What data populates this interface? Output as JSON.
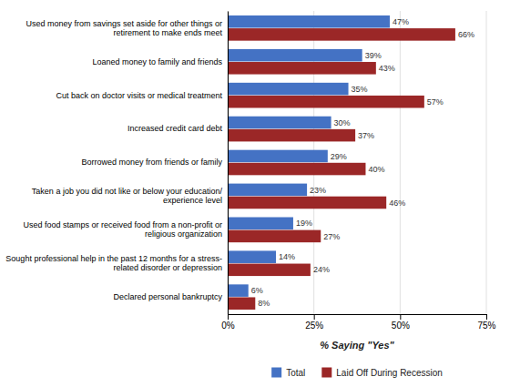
{
  "chart_data": {
    "type": "bar",
    "orientation": "horizontal",
    "categories": [
      "Used money from savings set aside for other things or\nretirement to make ends meet",
      "Loaned money to family and friends",
      "Cut back on doctor visits or medical treatment",
      "Increased credit card debt",
      "Borrowed money from friends or family",
      "Taken a job you did not like or below your education/\nexperience level",
      "Used food stamps or received food from a non-profit or\nreligious organization",
      "Sought professional help in the past 12 months for a stress-\nrelated disorder or depression",
      "Declared personal bankruptcy"
    ],
    "series": [
      {
        "name": "Total",
        "color": "#4472C4",
        "values": [
          47,
          39,
          35,
          30,
          29,
          23,
          19,
          14,
          6
        ],
        "value_labels": [
          "47%",
          "39%",
          "35%",
          "30%",
          "29%",
          "23%",
          "19%",
          "14%",
          "6%"
        ]
      },
      {
        "name": "Laid Off During Recession",
        "color": "#9B2727",
        "values": [
          66,
          43,
          57,
          37,
          40,
          46,
          27,
          24,
          8
        ],
        "value_labels": [
          "66%",
          "43%",
          "57%",
          "37%",
          "40%",
          "46%",
          "27%",
          "24%",
          "8%"
        ]
      }
    ],
    "xlabel": "% Saying \"Yes\"",
    "xlim": [
      0,
      75
    ],
    "xticks": [
      {
        "value": 0,
        "label": "0%"
      },
      {
        "value": 25,
        "label": "25%"
      },
      {
        "value": 50,
        "label": "50%"
      },
      {
        "value": 75,
        "label": "75%"
      }
    ],
    "grid": true,
    "data_labels": true,
    "legend": "bottom"
  }
}
